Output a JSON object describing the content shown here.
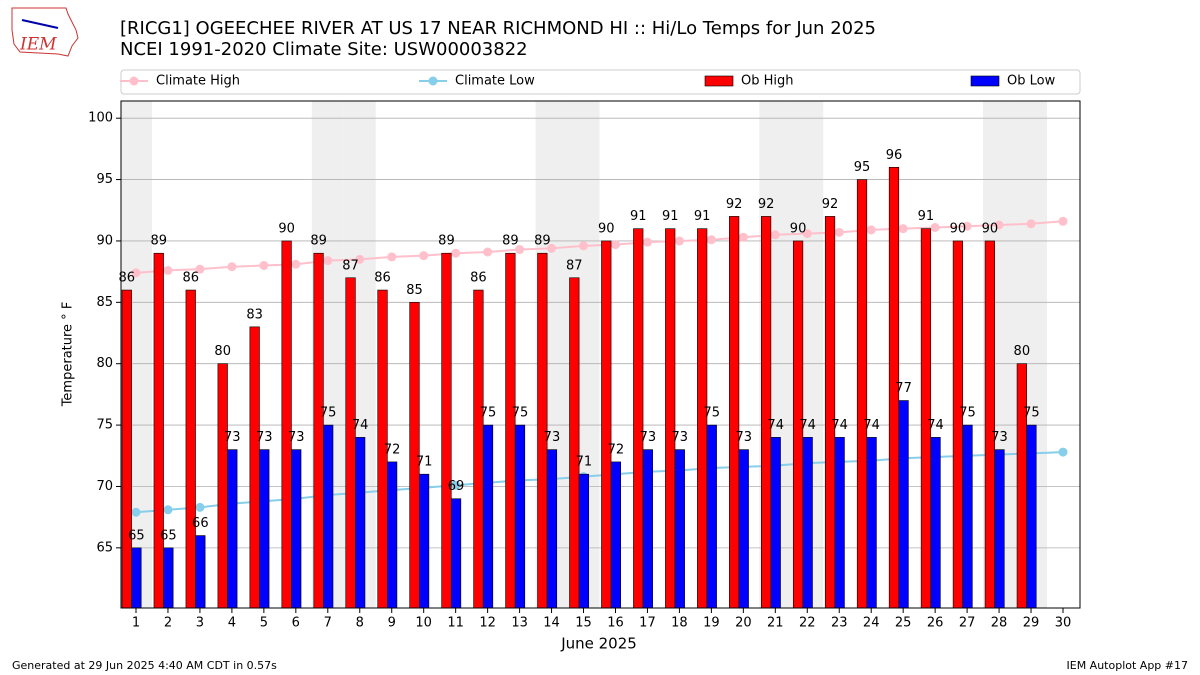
{
  "logo": "IEM",
  "footer_left": "Generated at 29 Jun 2025 4:40 AM CDT in 0.57s",
  "footer_right": "IEM Autoplot App #17",
  "chart_data": {
    "type": "bar",
    "title": "[RICG1] OGEECHEE RIVER AT US 17 NEAR RICHMOND HI :: Hi/Lo Temps for Jun 2025",
    "subtitle": "NCEI 1991-2020 Climate Site: USW00003822",
    "x_label": "June 2025",
    "y_label": "Temperature ° F",
    "categories": [
      "1",
      "2",
      "3",
      "4",
      "5",
      "6",
      "7",
      "8",
      "9",
      "10",
      "11",
      "12",
      "13",
      "14",
      "15",
      "16",
      "17",
      "18",
      "19",
      "20",
      "21",
      "22",
      "23",
      "24",
      "25",
      "26",
      "27",
      "28",
      "29",
      "30"
    ],
    "weekend_categories": [
      "1",
      "7",
      "8",
      "14",
      "15",
      "21",
      "22",
      "28",
      "29"
    ],
    "shade_color": "#efefef",
    "ylim": [
      60.1,
      101.4
    ],
    "yticks": [
      65,
      70,
      75,
      80,
      85,
      90,
      95,
      100
    ],
    "grid": true,
    "series": [
      {
        "name": "Climate High",
        "type": "line",
        "color": "#ffc0cb",
        "values": [
          87.4,
          87.6,
          87.7,
          87.9,
          88.0,
          88.1,
          88.4,
          88.5,
          88.7,
          88.8,
          89.0,
          89.1,
          89.3,
          89.4,
          89.6,
          89.7,
          89.9,
          90.0,
          90.1,
          90.3,
          90.5,
          90.6,
          90.7,
          90.9,
          91.0,
          91.1,
          91.2,
          91.3,
          91.4,
          91.6
        ]
      },
      {
        "name": "Climate Low",
        "type": "line",
        "color": "#87ceeb",
        "values": [
          67.9,
          68.1,
          68.3,
          68.6,
          68.8,
          69.0,
          69.3,
          69.5,
          69.7,
          69.9,
          70.1,
          70.3,
          70.5,
          70.6,
          70.8,
          71.0,
          71.2,
          71.3,
          71.5,
          71.6,
          71.7,
          71.9,
          72.0,
          72.1,
          72.3,
          72.4,
          72.5,
          72.6,
          72.7,
          72.8
        ]
      },
      {
        "name": "Ob High",
        "type": "bar",
        "color": "#ff0000",
        "values": [
          86,
          89,
          86,
          80,
          83,
          90,
          89,
          87,
          86,
          85,
          89,
          86,
          89,
          89,
          87,
          90,
          91,
          91,
          91,
          92,
          92,
          90,
          92,
          95,
          96,
          91,
          90,
          90,
          80,
          null
        ]
      },
      {
        "name": "Ob Low",
        "type": "bar",
        "color": "#0000ff",
        "values": [
          65,
          65,
          66,
          73,
          73,
          73,
          75,
          74,
          72,
          71,
          69,
          75,
          75,
          73,
          71,
          72,
          73,
          73,
          75,
          73,
          74,
          74,
          74,
          74,
          77,
          74,
          75,
          73,
          75,
          null
        ]
      }
    ]
  }
}
